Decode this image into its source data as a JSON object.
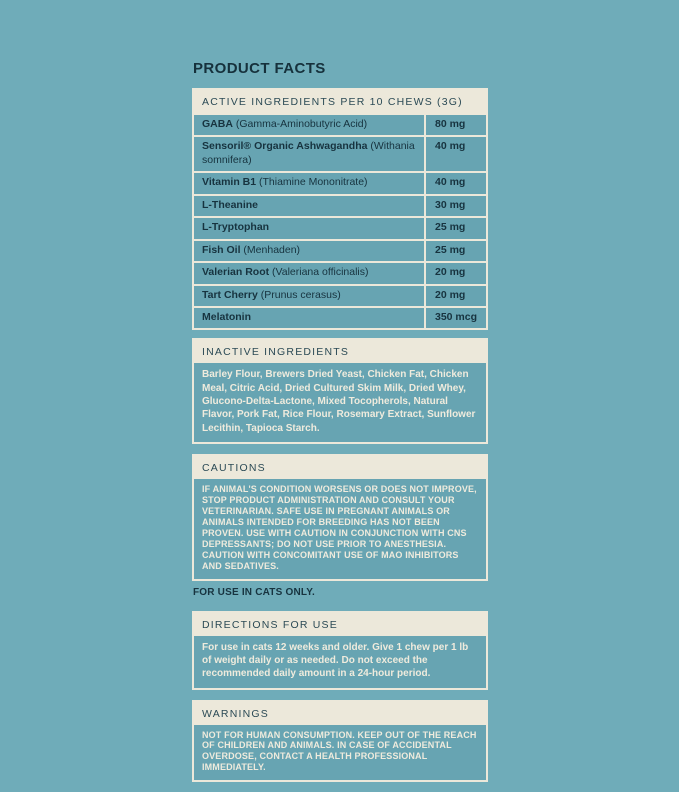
{
  "colors": {
    "background_teal": "#6FACB9",
    "row_teal": "#67A4B2",
    "cream": "#ECE8DA",
    "dark_navy_text": "#17333F",
    "cream_body_text": "#EFEBDD"
  },
  "title": "PRODUCT FACTS",
  "active_ingredients": {
    "header": "ACTIVE INGREDIENTS PER 10 CHEWS (3G)",
    "rows": [
      {
        "name": "GABA",
        "detail": "(Gamma-Aminobutyric Acid)",
        "amount": "80 mg"
      },
      {
        "name": "Sensoril® Organic Ashwagandha",
        "detail": "(Withania somnifera)",
        "amount": "40 mg"
      },
      {
        "name": "Vitamin B1",
        "detail": "(Thiamine Mononitrate)",
        "amount": "40 mg"
      },
      {
        "name": "L-Theanine",
        "detail": "",
        "amount": "30 mg"
      },
      {
        "name": "L-Tryptophan",
        "detail": "",
        "amount": "25 mg"
      },
      {
        "name": "Fish Oil",
        "detail": "(Menhaden)",
        "amount": "25 mg"
      },
      {
        "name": "Valerian Root",
        "detail": "(Valeriana officinalis)",
        "amount": "20 mg"
      },
      {
        "name": "Tart Cherry",
        "detail": "(Prunus cerasus)",
        "amount": "20 mg"
      },
      {
        "name": "Melatonin",
        "detail": "",
        "amount": "350 mcg"
      }
    ]
  },
  "inactive_ingredients": {
    "header": "INACTIVE INGREDIENTS",
    "body": "Barley Flour, Brewers Dried Yeast, Chicken Fat, Chicken Meal, Citric Acid, Dried Cultured Skim Milk, Dried Whey, Glucono-Delta-Lactone, Mixed Tocopherols, Natural Flavor, Pork Fat, Rice Flour, Rosemary Extract, Sunflower Lecithin, Tapioca Starch."
  },
  "cautions": {
    "header": "CAUTIONS",
    "body": "IF ANIMAL'S CONDITION WORSENS OR DOES NOT IMPROVE, STOP PRODUCT ADMINISTRATION AND CONSULT YOUR VETERINARIAN. SAFE USE IN PREGNANT ANIMALS OR ANIMALS INTENDED FOR BREEDING HAS NOT BEEN PROVEN. USE WITH CAUTION IN CONJUNCTION WITH CNS DEPRESSANTS; DO NOT USE PRIOR TO ANESTHESIA. CAUTION WITH CONCOMITANT USE OF MAO INHIBITORS AND SEDATIVES.",
    "footnote": "FOR USE IN CATS ONLY."
  },
  "directions": {
    "header": "DIRECTIONS FOR USE",
    "body": "For use in cats 12 weeks and older. Give 1 chew per 1 lb of weight daily or as needed. Do not exceed the recommended daily amount in a 24-hour period."
  },
  "warnings": {
    "header": "WARNINGS",
    "body": "NOT FOR HUMAN CONSUMPTION. KEEP OUT OF THE REACH OF CHILDREN AND ANIMALS. IN CASE OF ACCIDENTAL OVERDOSE, CONTACT A HEALTH PROFESSIONAL IMMEDIATELY."
  }
}
